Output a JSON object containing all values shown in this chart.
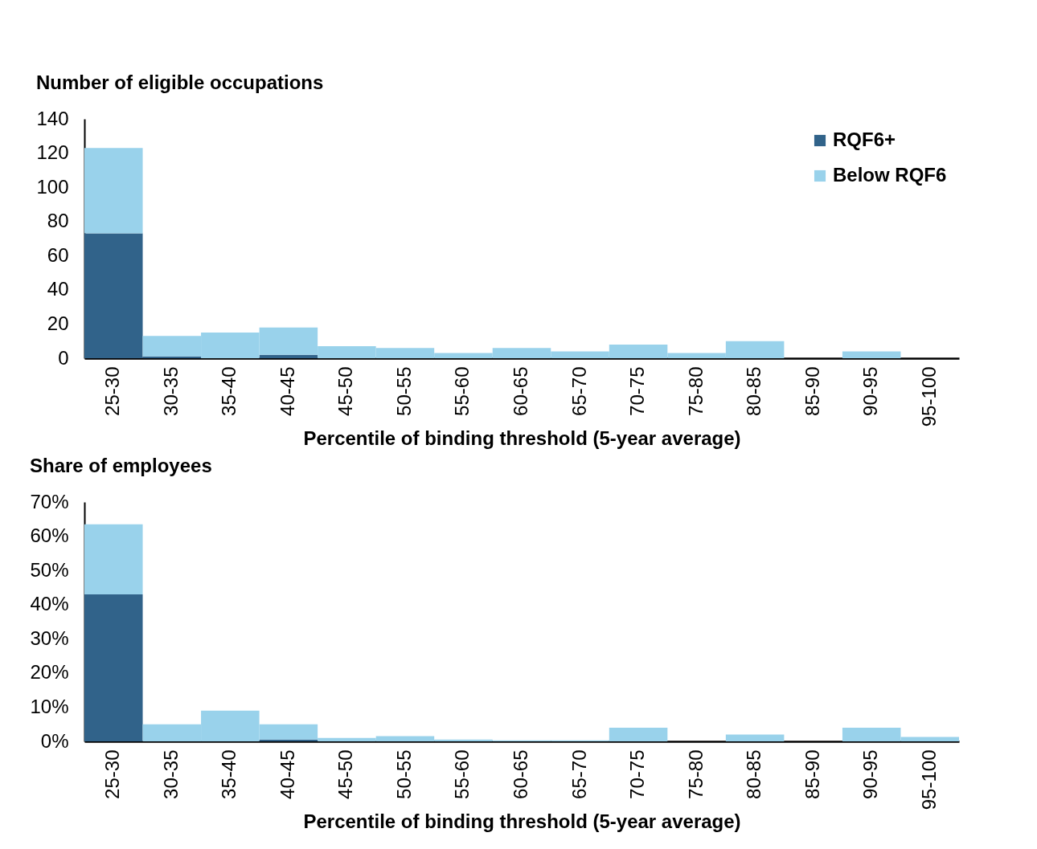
{
  "chart_data": [
    {
      "type": "bar",
      "title": "Number of eligible occupations",
      "xlabel": "Percentile of binding threshold (5-year average)",
      "categories": [
        "25-30",
        "30-35",
        "35-40",
        "40-45",
        "45-50",
        "50-55",
        "55-60",
        "60-65",
        "65-70",
        "70-75",
        "75-80",
        "80-85",
        "85-90",
        "90-95",
        "95-100"
      ],
      "series": [
        {
          "name": "RQF6+",
          "color": "#31638a",
          "values": [
            73,
            1,
            0,
            2,
            0,
            0,
            0,
            0,
            0,
            0,
            0,
            0,
            0,
            0,
            0
          ]
        },
        {
          "name": "Below RQF6",
          "color": "#99d2eb",
          "values": [
            50,
            12,
            15,
            16,
            7,
            6,
            3,
            6,
            4,
            8,
            3,
            10,
            0,
            4,
            0
          ]
        }
      ],
      "stacked": true,
      "ylim": [
        0,
        140
      ],
      "yticks": [
        0,
        20,
        40,
        60,
        80,
        100,
        120,
        140
      ],
      "legend": "top right",
      "grid": false
    },
    {
      "type": "bar",
      "title": "Share of employees",
      "xlabel": "Percentile of binding threshold (5-year average)",
      "categories": [
        "25-30",
        "30-35",
        "35-40",
        "40-45",
        "45-50",
        "50-55",
        "55-60",
        "60-65",
        "65-70",
        "70-75",
        "75-80",
        "80-85",
        "85-90",
        "90-95",
        "95-100"
      ],
      "series": [
        {
          "name": "RQF6+",
          "color": "#31638a",
          "values": [
            43,
            0,
            0,
            0.5,
            0,
            0,
            0,
            0,
            0,
            0,
            0,
            0,
            0,
            0,
            0
          ]
        },
        {
          "name": "Below RQF6",
          "color": "#99d2eb",
          "values": [
            20.5,
            5,
            9,
            4.5,
            1,
            1.5,
            0.5,
            0.3,
            0.3,
            4,
            0,
            2,
            0,
            4,
            1.3
          ]
        }
      ],
      "stacked": true,
      "ylim": [
        0,
        70
      ],
      "yticks": [
        {
          "value": 0,
          "label": "0%"
        },
        {
          "value": 10,
          "label": "10%"
        },
        {
          "value": 20,
          "label": "20%"
        },
        {
          "value": 30,
          "label": "30%"
        },
        {
          "value": 40,
          "label": "40%"
        },
        {
          "value": 50,
          "label": "50%"
        },
        {
          "value": 60,
          "label": "60%"
        },
        {
          "value": 70,
          "label": "70%"
        }
      ],
      "legend": "top right",
      "grid": false
    }
  ]
}
